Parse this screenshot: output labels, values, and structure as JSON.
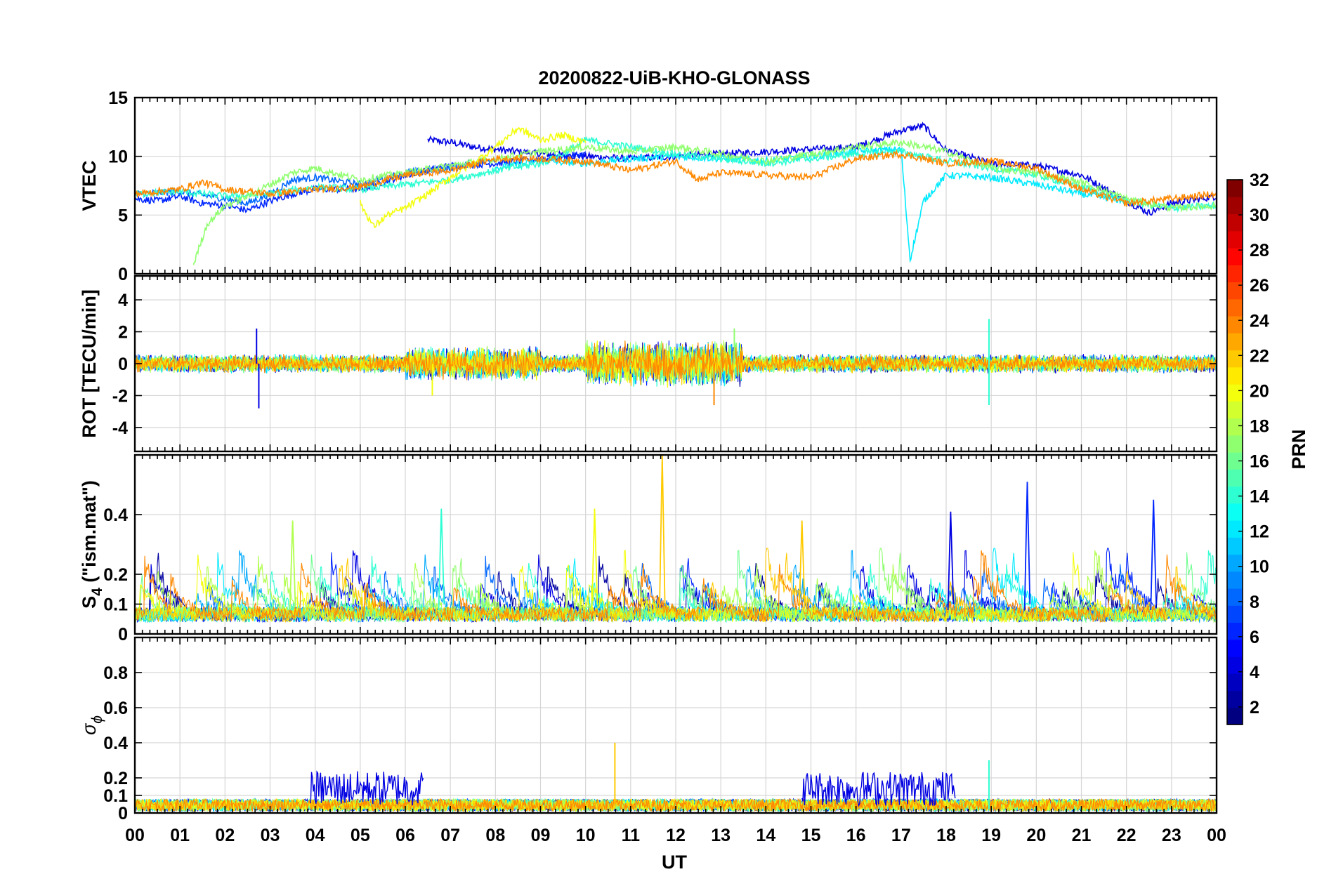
{
  "chart_data": {
    "type": "line",
    "title": "20200822-UiB-KHO-GLONASS",
    "xlabel": "UT",
    "x_ticks": [
      "00",
      "01",
      "02",
      "03",
      "04",
      "05",
      "06",
      "07",
      "08",
      "09",
      "10",
      "11",
      "12",
      "13",
      "14",
      "15",
      "16",
      "17",
      "18",
      "19",
      "20",
      "21",
      "22",
      "23",
      "00"
    ],
    "xlim_hours": [
      0,
      24
    ],
    "grid": true,
    "colorbar": {
      "label": "PRN",
      "range": [
        1,
        32
      ],
      "ticks": [
        "2",
        "4",
        "6",
        "8",
        "10",
        "12",
        "14",
        "16",
        "18",
        "20",
        "22",
        "24",
        "26",
        "28",
        "30",
        "32"
      ],
      "colormap": "jet",
      "placement": "right"
    },
    "panels": [
      {
        "id": "vtec",
        "ylabel": "VTEC",
        "ylim": [
          0,
          15
        ],
        "yticks": [
          "0",
          "5",
          "10",
          "15"
        ],
        "description_series": [
          {
            "prn": 4,
            "x": [
              6.5,
              7,
              7.5,
              8,
              9,
              10,
              11,
              12,
              13,
              14,
              15,
              16,
              17,
              17.5,
              18,
              19,
              20,
              21,
              22,
              22.5,
              23,
              24
            ],
            "y": [
              11.4,
              11.2,
              10.8,
              10.6,
              10.2,
              10,
              9.8,
              10,
              10.2,
              10.4,
              10.6,
              10.8,
              12.2,
              12.6,
              10.5,
              9.4,
              9.2,
              8.4,
              6.2,
              5.2,
              6,
              6.6
            ]
          },
          {
            "prn": 6,
            "x": [
              0,
              0.5,
              1,
              1.5,
              2,
              2.5,
              3,
              3.5,
              4,
              5,
              6,
              6.5,
              7,
              8,
              9,
              10
            ],
            "y": [
              6.4,
              6.2,
              6.6,
              6,
              5.8,
              5.4,
              6.2,
              6.8,
              7.2,
              7.2,
              8.4,
              8.8,
              9.2,
              9.4,
              9.8,
              10.2
            ]
          },
          {
            "prn": 8,
            "x": [
              0,
              1,
              2,
              2.5,
              3,
              3.5,
              4,
              5,
              6,
              7,
              8
            ],
            "y": [
              6.8,
              7,
              6.4,
              6,
              6.8,
              8,
              8.2,
              7.6,
              8.6,
              9,
              9.8
            ]
          },
          {
            "prn": 12,
            "x": [
              8,
              9,
              10,
              11,
              12,
              13,
              14,
              15,
              16,
              17,
              17.2,
              17.5,
              18,
              19,
              20,
              21,
              22
            ],
            "y": [
              9,
              9.6,
              9.4,
              9.8,
              10,
              9.8,
              9.6,
              10,
              10.4,
              10.6,
              1.2,
              6.2,
              8.4,
              8.2,
              7.6,
              6.8,
              6.2
            ]
          },
          {
            "prn": 14,
            "x": [
              0,
              1,
              2,
              3,
              4,
              5,
              6,
              7,
              8,
              9,
              9.5,
              10,
              11,
              12,
              13,
              14,
              15,
              16,
              17,
              18,
              19,
              20,
              21,
              22,
              23,
              24
            ],
            "y": [
              6.8,
              7,
              6.6,
              6.8,
              7.4,
              7.2,
              7.6,
              8,
              8.8,
              9.4,
              10.2,
              11.4,
              10.8,
              10.2,
              9.8,
              9.4,
              9.8,
              10.2,
              10.4,
              9.6,
              9,
              8.4,
              7.4,
              6.2,
              5.6,
              5.8
            ]
          },
          {
            "prn": 17,
            "x": [
              1.3,
              1.6,
              2,
              2.5,
              3,
              3.5,
              4,
              5,
              6,
              7,
              8,
              9,
              10,
              11,
              12,
              13,
              14,
              15,
              16,
              17,
              18,
              19,
              20,
              21,
              22,
              23,
              24
            ],
            "y": [
              0.8,
              4.2,
              5.8,
              6.6,
              7.6,
              8.6,
              9,
              8,
              8.6,
              9.2,
              9.8,
              10.4,
              10.8,
              10.4,
              10.8,
              10.2,
              9.6,
              10.2,
              10.8,
              11.2,
              10.4,
              9,
              8.6,
              7.8,
              6.4,
              5.6,
              5.8
            ]
          },
          {
            "prn": 20,
            "x": [
              5,
              5.3,
              5.6,
              6,
              6.5,
              7,
              7.5,
              8,
              8.5,
              9,
              9.5,
              10
            ],
            "y": [
              6,
              4,
              5,
              5.6,
              6.8,
              8.2,
              9.4,
              10.8,
              12.4,
              11.4,
              11.8,
              11.2
            ]
          },
          {
            "prn": 24,
            "x": [
              0,
              0.5,
              1,
              1.5,
              2,
              3,
              4,
              5,
              6,
              7,
              8,
              9,
              10,
              11,
              12,
              12.5,
              13,
              14,
              15,
              16,
              17,
              18,
              19,
              20,
              21,
              22,
              23,
              24
            ],
            "y": [
              6.8,
              7,
              7.2,
              7.8,
              7.2,
              6.8,
              7.2,
              7.4,
              8.4,
              8.8,
              9.8,
              9.8,
              9.6,
              8.8,
              9.6,
              8,
              8.6,
              8.4,
              8.2,
              9.8,
              10.2,
              9.4,
              9.6,
              9,
              7.2,
              6,
              6.4,
              6.8
            ]
          }
        ]
      },
      {
        "id": "rot",
        "ylabel": "ROT [TECU/min]",
        "ylim": [
          -5.5,
          5.5
        ],
        "yticks": [
          "-4",
          "-2",
          "0",
          "2",
          "4"
        ],
        "spikes": [
          {
            "prn": 4,
            "hour": 2.7,
            "value": 2.2
          },
          {
            "prn": 4,
            "hour": 2.75,
            "value": -2.8
          },
          {
            "prn": 24,
            "hour": 12.85,
            "value": -2.6
          },
          {
            "prn": 14,
            "hour": 18.95,
            "value": 2.8
          },
          {
            "prn": 14,
            "hour": 18.95,
            "value": -2.6
          },
          {
            "prn": 17,
            "hour": 13.3,
            "value": 2.2
          },
          {
            "prn": 20,
            "hour": 6.6,
            "value": -2.0
          }
        ]
      },
      {
        "id": "s4",
        "ylabel": "S4 (\"ism.mat\")",
        "ylabel_main": "S",
        "ylabel_sub": "4",
        "ylabel_rest": " (\"ism.mat\")",
        "ylim": [
          0,
          0.6
        ],
        "yticks": [
          "0",
          "0.1",
          "0.2",
          "0.4"
        ],
        "ytick_values": [
          0,
          0.1,
          0.2,
          0.4
        ],
        "peaks": [
          {
            "prn": 22,
            "hour": 11.7,
            "value": 0.6
          },
          {
            "prn": 6,
            "hour": 19.8,
            "value": 0.51
          },
          {
            "prn": 14,
            "hour": 6.8,
            "value": 0.42
          },
          {
            "prn": 4,
            "hour": 18.1,
            "value": 0.41
          },
          {
            "prn": 22,
            "hour": 14.8,
            "value": 0.38
          },
          {
            "prn": 6,
            "hour": 22.6,
            "value": 0.45
          },
          {
            "prn": 18,
            "hour": 3.5,
            "value": 0.38
          },
          {
            "prn": 20,
            "hour": 10.2,
            "value": 0.42
          }
        ]
      },
      {
        "id": "sigma_phi",
        "ylabel": "σ ϕ",
        "ylabel_main": "σ",
        "ylabel_sub": "ϕ",
        "ylim": [
          0,
          1.0
        ],
        "yticks": [
          "0",
          "0.1",
          "0.2",
          "0.4",
          "0.6",
          "0.8"
        ],
        "ytick_values": [
          0,
          0.1,
          0.2,
          0.4,
          0.6,
          0.8
        ],
        "dense_bands": [
          {
            "prn": 4,
            "from_hour": 3.9,
            "to_hour": 6.4,
            "max": 0.24
          },
          {
            "prn": 4,
            "from_hour": 14.8,
            "to_hour": 18.2,
            "max": 0.24
          }
        ],
        "peaks": [
          {
            "prn": 22,
            "hour": 10.65,
            "value": 0.4
          },
          {
            "prn": 14,
            "hour": 18.95,
            "value": 0.3
          }
        ]
      }
    ]
  }
}
